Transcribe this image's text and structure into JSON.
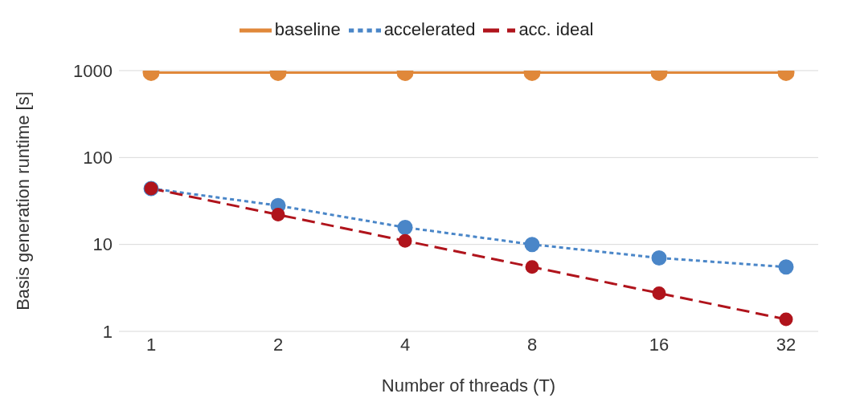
{
  "chart_data": {
    "type": "line",
    "xlabel": "Number of threads (T)",
    "ylabel": "Basis generation runtime [s]",
    "categories": [
      "1",
      "2",
      "4",
      "8",
      "16",
      "32"
    ],
    "series": [
      {
        "name": "baseline",
        "color": "#e0883a",
        "line_style": "solid",
        "values": [
          950,
          950,
          950,
          950,
          950,
          950
        ]
      },
      {
        "name": "accelerated",
        "color": "#4a86c8",
        "line_style": "dotted",
        "values": [
          44,
          28,
          15.7,
          10,
          7,
          5.5
        ]
      },
      {
        "name": "acc. ideal",
        "color": "#b0141c",
        "line_style": "dashed",
        "values": [
          44,
          22,
          11,
          5.5,
          2.75,
          1.375
        ]
      }
    ],
    "log": "y",
    "ylim": [
      1,
      1000
    ],
    "yticks": [
      1,
      10,
      100,
      1000
    ],
    "grid": "y",
    "legend": "top",
    "marker": "circle"
  }
}
